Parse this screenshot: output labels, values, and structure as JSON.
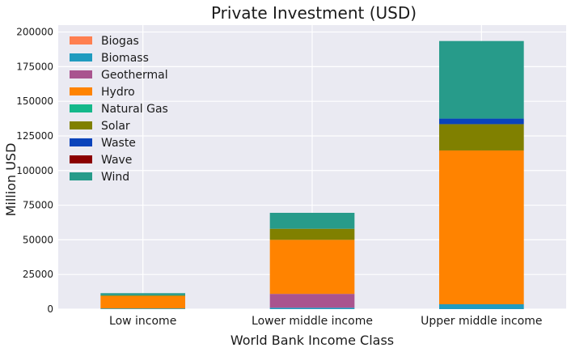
{
  "chart_data": {
    "type": "bar",
    "stacked": true,
    "title": "Private Investment (USD)",
    "xlabel": "World Bank Income Class",
    "ylabel": "Million USD",
    "categories": [
      "Low income",
      "Lower middle income",
      "Upper middle income"
    ],
    "ylim": [
      0,
      205000
    ],
    "yticks": [
      0,
      25000,
      50000,
      75000,
      100000,
      125000,
      150000,
      175000,
      200000
    ],
    "ytick_labels": [
      "0",
      "25000",
      "50000",
      "75000",
      "100000",
      "125000",
      "150000",
      "175000",
      "200000"
    ],
    "grid": true,
    "legend_position": "top-left",
    "series": [
      {
        "name": "Biogas",
        "color": "#ff7f50",
        "values": [
          0,
          0,
          0
        ]
      },
      {
        "name": "Biomass",
        "color": "#1f9bbf",
        "values": [
          500,
          1000,
          3500
        ]
      },
      {
        "name": "Geothermal",
        "color": "#a9548f",
        "values": [
          0,
          10000,
          0
        ]
      },
      {
        "name": "Hydro",
        "color": "#ff8300",
        "values": [
          9000,
          39000,
          111000
        ]
      },
      {
        "name": "Natural Gas",
        "color": "#14b88a",
        "values": [
          0,
          0,
          0
        ]
      },
      {
        "name": "Solar",
        "color": "#808000",
        "values": [
          500,
          8000,
          19000
        ]
      },
      {
        "name": "Waste",
        "color": "#0a43bb",
        "values": [
          0,
          0,
          4000
        ]
      },
      {
        "name": "Wave",
        "color": "#8b0000",
        "values": [
          0,
          0,
          0
        ]
      },
      {
        "name": "Wind",
        "color": "#279b8a",
        "values": [
          1500,
          11500,
          56000
        ]
      }
    ]
  }
}
